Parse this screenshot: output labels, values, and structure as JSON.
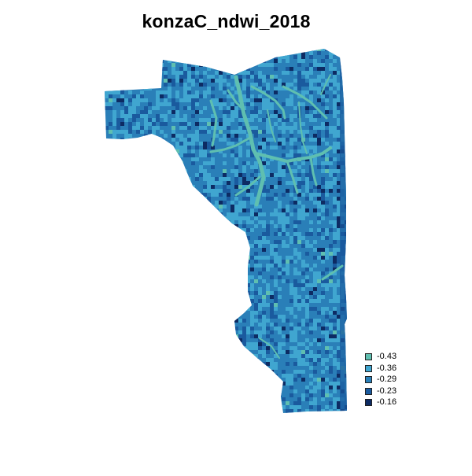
{
  "title": "konzaC_ndwi_2018",
  "map": {
    "layer_name": "konzaC_ndwi_2018",
    "value_range": [
      -0.43,
      -0.16
    ]
  },
  "legend": {
    "placement": "bottom-right",
    "items": [
      {
        "label": "-0.43",
        "value": -0.43,
        "color": "#5fbfb0"
      },
      {
        "label": "-0.36",
        "value": -0.36,
        "color": "#40a6d0"
      },
      {
        "label": "-0.29",
        "value": -0.29,
        "color": "#2a7fb8"
      },
      {
        "label": "-0.23",
        "value": -0.23,
        "color": "#1a5a9e"
      },
      {
        "label": "-0.16",
        "value": -0.16,
        "color": "#0d2b63"
      }
    ]
  }
}
